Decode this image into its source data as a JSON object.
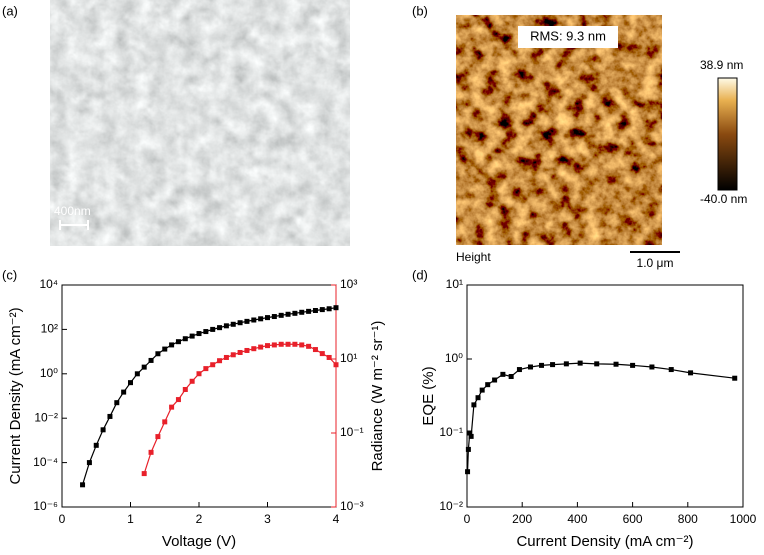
{
  "images": [
    {
      "panel_label": "(a)",
      "scale_bar": "400nm"
    },
    {
      "panel_label": "(b)",
      "annotation": "RMS: 9.3 nm",
      "colorbar_max": "38.9 nm",
      "colorbar_min": "-40.0 nm",
      "caption": "Height",
      "scale_bar": "1.0 μm"
    }
  ],
  "chart_data": [
    {
      "type": "line",
      "panel_label": "(c)",
      "xlabel": "Voltage (V)",
      "ylabel": "Current Density (mA cm⁻²)",
      "y2label": "Radiance (W m⁻² sr⁻¹)",
      "xlim": [
        0,
        4
      ],
      "xticks": [
        0,
        1,
        2,
        3,
        4
      ],
      "ylog": true,
      "y2log": true,
      "ylim": [
        1e-06,
        10000
      ],
      "yticks": [
        {
          "value": 1e-06,
          "label": "10⁻⁶"
        },
        {
          "value": 0.0001,
          "label": "10⁻⁴"
        },
        {
          "value": 0.01,
          "label": "10⁻²"
        },
        {
          "value": 1,
          "label": "10⁰"
        },
        {
          "value": 100,
          "label": "10²"
        },
        {
          "value": 10000,
          "label": "10⁴"
        }
      ],
      "y2lim": [
        0.001,
        1000
      ],
      "y2ticks": [
        {
          "value": 0.001,
          "label": "10⁻³"
        },
        {
          "value": 0.1,
          "label": "10⁻¹"
        },
        {
          "value": 10,
          "label": "10¹"
        },
        {
          "value": 1000,
          "label": "10³"
        }
      ],
      "series": [
        {
          "color": "#000000",
          "axis": "y",
          "x": [
            0.3,
            0.4,
            0.5,
            0.6,
            0.7,
            0.8,
            0.9,
            1.0,
            1.1,
            1.2,
            1.3,
            1.4,
            1.5,
            1.6,
            1.7,
            1.8,
            1.9,
            2.0,
            2.1,
            2.2,
            2.3,
            2.4,
            2.5,
            2.6,
            2.7,
            2.8,
            2.9,
            3.0,
            3.1,
            3.2,
            3.3,
            3.4,
            3.5,
            3.6,
            3.7,
            3.8,
            3.9,
            4.0
          ],
          "values": [
            1e-05,
            0.0001,
            0.0006,
            0.003,
            0.012,
            0.05,
            0.15,
            0.4,
            1,
            2,
            4,
            8,
            13,
            20,
            28,
            38,
            50,
            65,
            80,
            100,
            120,
            145,
            170,
            200,
            230,
            265,
            300,
            340,
            380,
            430,
            480,
            530,
            590,
            650,
            710,
            780,
            850,
            950
          ]
        },
        {
          "color": "#e8202a",
          "axis": "y2",
          "x": [
            1.2,
            1.3,
            1.4,
            1.5,
            1.6,
            1.7,
            1.8,
            1.9,
            2.0,
            2.1,
            2.2,
            2.3,
            2.4,
            2.5,
            2.6,
            2.7,
            2.8,
            2.9,
            3.0,
            3.1,
            3.2,
            3.3,
            3.4,
            3.5,
            3.6,
            3.7,
            3.8,
            3.9,
            4.0
          ],
          "values": [
            0.008,
            0.03,
            0.08,
            0.2,
            0.5,
            0.8,
            1.5,
            2.5,
            4,
            5.5,
            7,
            9,
            11,
            13,
            15,
            17,
            19,
            21,
            23,
            24,
            25,
            25,
            25,
            24,
            22,
            18,
            14,
            11,
            7
          ]
        }
      ]
    },
    {
      "type": "line",
      "panel_label": "(d)",
      "xlabel": "Current Density (mA cm⁻²)",
      "ylabel": "EQE (%)",
      "xlim": [
        0,
        1000
      ],
      "xticks": [
        0,
        200,
        400,
        600,
        800,
        1000
      ],
      "ylog": true,
      "ylim": [
        0.01,
        10
      ],
      "yticks": [
        {
          "value": 0.01,
          "label": "10⁻²"
        },
        {
          "value": 0.1,
          "label": "10⁻¹"
        },
        {
          "value": 1,
          "label": "10⁰"
        },
        {
          "value": 10,
          "label": "10¹"
        }
      ],
      "series": [
        {
          "color": "#000000",
          "axis": "y",
          "x": [
            2,
            5,
            10,
            15,
            25,
            40,
            55,
            75,
            100,
            130,
            160,
            190,
            230,
            270,
            310,
            360,
            410,
            470,
            540,
            600,
            670,
            740,
            810,
            970
          ],
          "values": [
            0.03,
            0.06,
            0.1,
            0.09,
            0.24,
            0.3,
            0.38,
            0.45,
            0.52,
            0.62,
            0.58,
            0.72,
            0.78,
            0.82,
            0.84,
            0.86,
            0.88,
            0.86,
            0.85,
            0.82,
            0.78,
            0.72,
            0.65,
            0.55
          ]
        }
      ]
    }
  ]
}
